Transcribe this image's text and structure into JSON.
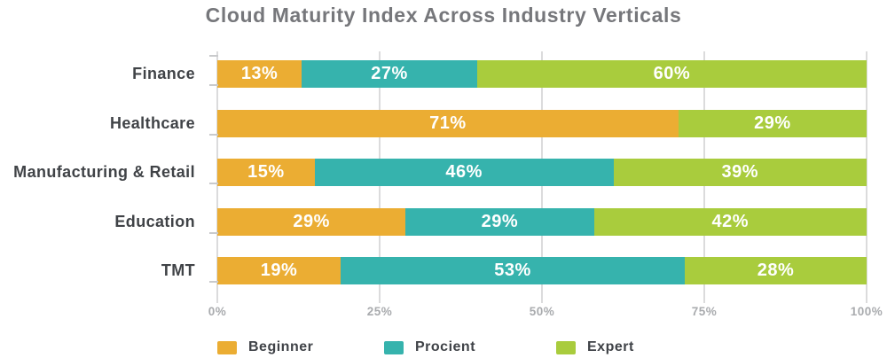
{
  "title": "Cloud Maturity Index Across Industry Verticals",
  "colors": {
    "beginner": "#EBAD33",
    "procient": "#36B3AD",
    "expert": "#A9CC3D",
    "gridline": "#DBDBDC",
    "axis_tick": "#C9CACC",
    "title_text": "#76777B",
    "category_text": "#404347",
    "tick_label_text": "#A9ABAE",
    "legend_text": "#3F4247",
    "value_label_text": "#FFFFFF"
  },
  "chart_data": {
    "type": "bar",
    "orientation": "horizontal",
    "stacked": true,
    "title": "Cloud Maturity Index Across Industry Verticals",
    "categories": [
      "Finance",
      "Healthcare",
      "Manufacturing & Retail",
      "Education",
      "TMT"
    ],
    "series": [
      {
        "name": "Beginner",
        "color": "#EBAD33",
        "values": [
          13,
          71,
          15,
          29,
          19
        ]
      },
      {
        "name": "Procient",
        "color": "#36B3AD",
        "values": [
          27,
          0,
          46,
          29,
          53
        ]
      },
      {
        "name": "Expert",
        "color": "#A9CC3D",
        "values": [
          60,
          29,
          39,
          42,
          28
        ]
      }
    ],
    "x_tick_labels": [
      "0%",
      "25%",
      "50%",
      "75%",
      "100%"
    ],
    "xlim": [
      0,
      100
    ],
    "value_label_format": "{v}%",
    "grid": "vertical",
    "legend_position": "bottom"
  }
}
